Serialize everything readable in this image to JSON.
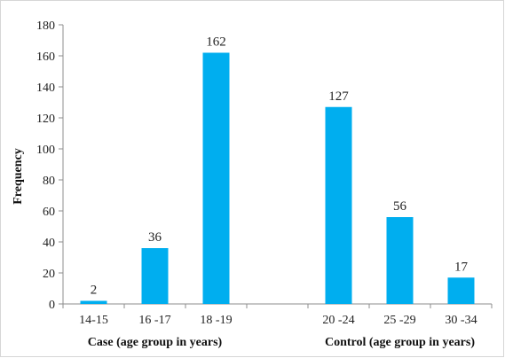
{
  "chart_data": {
    "type": "bar",
    "ylabel": "Frequency",
    "ylim": [
      0,
      180
    ],
    "yticks": [
      0,
      20,
      40,
      60,
      80,
      100,
      120,
      140,
      160,
      180
    ],
    "grid": false,
    "bar_color": "#00aeef",
    "categories": [
      "14-15",
      "16 -17",
      "18 -19",
      "",
      "20 -24",
      "25 -29",
      "30 -34"
    ],
    "values": [
      2,
      36,
      162,
      null,
      127,
      56,
      17
    ],
    "data_labels": [
      "2",
      "36",
      "162",
      "",
      "127",
      "56",
      "17"
    ],
    "group_labels": [
      {
        "label": "Case (age group in years)",
        "categories": [
          "14-15",
          "16 -17",
          "18 -19"
        ]
      },
      {
        "label": "Control (age group in years)",
        "categories": [
          "20 -24",
          "25 -29",
          "30 -34"
        ]
      }
    ]
  }
}
